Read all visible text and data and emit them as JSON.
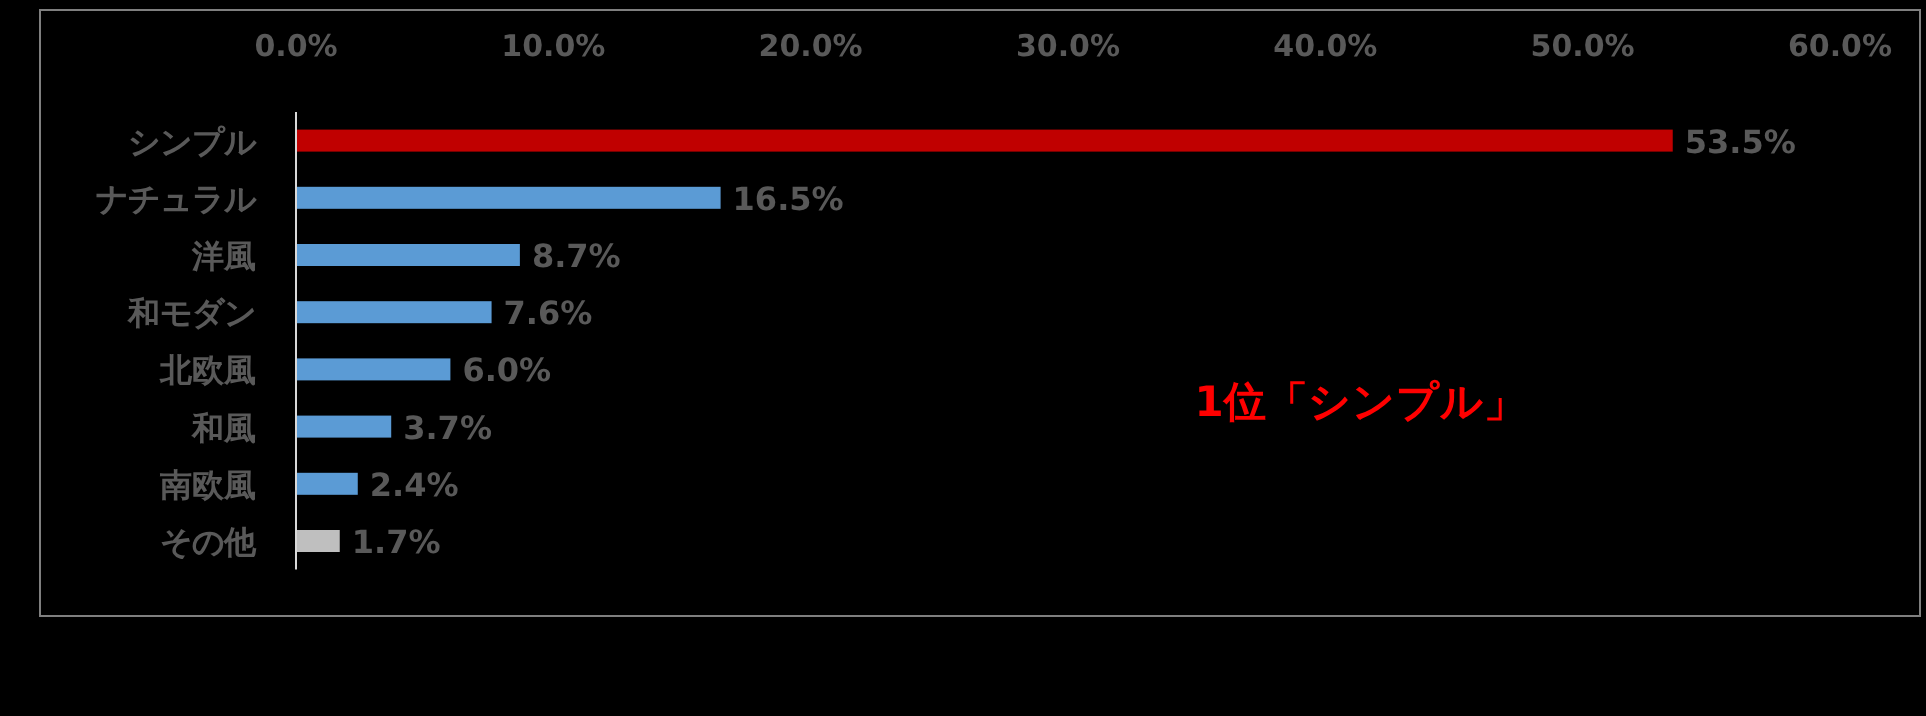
{
  "chart_data": {
    "type": "bar",
    "orientation": "horizontal",
    "categories": [
      "シンプル",
      "ナチュラル",
      "洋風",
      "和モダン",
      "北欧風",
      "和風",
      "南欧風",
      "その他"
    ],
    "values": [
      53.5,
      16.5,
      8.7,
      7.6,
      6.0,
      3.7,
      2.4,
      1.7
    ],
    "colors": [
      "#c00000",
      "#5b9bd5",
      "#5b9bd5",
      "#5b9bd5",
      "#5b9bd5",
      "#5b9bd5",
      "#5b9bd5",
      "#bfbfbf"
    ],
    "value_labels": [
      "53.5%",
      "16.5%",
      "8.7%",
      "7.6%",
      "6.0%",
      "3.7%",
      "2.4%",
      "1.7%"
    ],
    "xlim": [
      0,
      60
    ],
    "xticks": [
      {
        "value": 0,
        "label": "0.0%"
      },
      {
        "value": 10,
        "label": "10.0%"
      },
      {
        "value": 20,
        "label": "20.0%"
      },
      {
        "value": 30,
        "label": "30.0%"
      },
      {
        "value": 40,
        "label": "40.0%"
      },
      {
        "value": 50,
        "label": "50.0%"
      },
      {
        "value": 60,
        "label": "60.0%"
      }
    ],
    "annotations": [
      "1位「シンプル」"
    ]
  }
}
